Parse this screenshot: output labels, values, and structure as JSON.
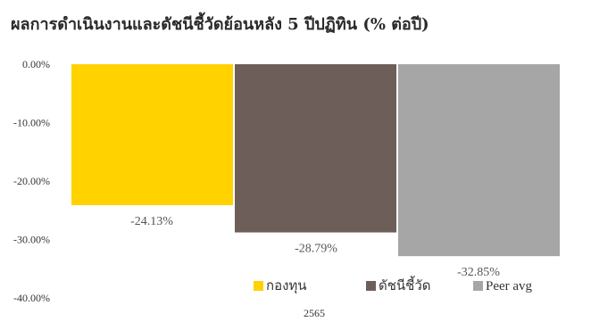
{
  "chart_data": {
    "type": "bar",
    "title": "ผลการดำเนินงานและดัชนีชี้วัดย้อนหลัง 5 ปีปฏิทิน (% ต่อปี)",
    "categories": [
      "2565"
    ],
    "series": [
      {
        "name": "กองทุน",
        "values": [
          -24.13
        ],
        "label": "-24.13%",
        "color": "#FFD200"
      },
      {
        "name": "ดัชนีชี้วัด",
        "values": [
          -28.79
        ],
        "label": "-28.79%",
        "color": "#6E5E5A"
      },
      {
        "name": "Peer avg",
        "values": [
          -32.85
        ],
        "label": "-32.85%",
        "color": "#A6A6A6"
      }
    ],
    "y_ticks": [
      "0.00%",
      "-10.00%",
      "-20.00%",
      "-30.00%",
      "-40.00%"
    ],
    "ylim": [
      -40,
      0
    ],
    "legend": "bottom-right",
    "grid": false
  }
}
